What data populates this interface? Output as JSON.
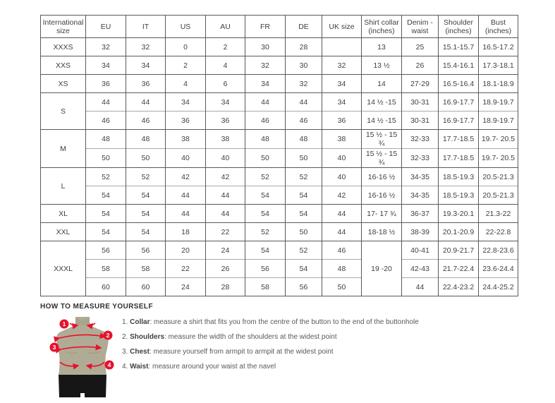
{
  "table": {
    "headers": [
      "International size",
      "EU",
      "IT",
      "US",
      "AU",
      "FR",
      "DE",
      "UK size",
      "Shirt collar (inches)",
      "Denim - waist",
      "Shoulder (inches)",
      "Bust (inches)"
    ],
    "rows": [
      {
        "group": true,
        "cells": [
          [
            "XXXS",
            1
          ],
          [
            "32",
            1
          ],
          [
            "32",
            1
          ],
          [
            "0",
            1
          ],
          [
            "2",
            1
          ],
          [
            "30",
            1
          ],
          [
            "28",
            1
          ],
          [
            "",
            1
          ],
          [
            "13",
            1
          ],
          [
            "25",
            1
          ],
          [
            "15.1-15.7",
            1
          ],
          [
            "16.5-17.2",
            1
          ]
        ]
      },
      {
        "group": true,
        "cells": [
          [
            "XXS",
            1
          ],
          [
            "34",
            1
          ],
          [
            "34",
            1
          ],
          [
            "2",
            1
          ],
          [
            "4",
            1
          ],
          [
            "32",
            1
          ],
          [
            "30",
            1
          ],
          [
            "32",
            1
          ],
          [
            "13 ½",
            1
          ],
          [
            "26",
            1
          ],
          [
            "15.4-16.1",
            1
          ],
          [
            "17.3-18.1",
            1
          ]
        ]
      },
      {
        "group": true,
        "cells": [
          [
            "XS",
            1
          ],
          [
            "36",
            1
          ],
          [
            "36",
            1
          ],
          [
            "4",
            1
          ],
          [
            "6",
            1
          ],
          [
            "34",
            1
          ],
          [
            "32",
            1
          ],
          [
            "34",
            1
          ],
          [
            "14",
            1
          ],
          [
            "27-29",
            1
          ],
          [
            "16.5-16.4",
            1
          ],
          [
            "18.1-18.9",
            1
          ]
        ]
      },
      {
        "group": true,
        "cells": [
          [
            "S",
            2
          ],
          [
            "44",
            1
          ],
          [
            "44",
            1
          ],
          [
            "34",
            1
          ],
          [
            "34",
            1
          ],
          [
            "44",
            1
          ],
          [
            "44",
            1
          ],
          [
            "34",
            1
          ],
          [
            "14 ½ -15",
            1
          ],
          [
            "30-31",
            1
          ],
          [
            "16.9-17.7",
            1
          ],
          [
            "18.9-19.7",
            1
          ]
        ]
      },
      {
        "group": false,
        "cells": [
          null,
          [
            "46",
            1
          ],
          [
            "46",
            1
          ],
          [
            "36",
            1
          ],
          [
            "36",
            1
          ],
          [
            "46",
            1
          ],
          [
            "46",
            1
          ],
          [
            "36",
            1
          ],
          [
            "14 ½ -15",
            1
          ],
          [
            "30-31",
            1
          ],
          [
            "16.9-17.7",
            1
          ],
          [
            "18.9-19.7",
            1
          ]
        ]
      },
      {
        "group": true,
        "cells": [
          [
            "M",
            2
          ],
          [
            "48",
            1
          ],
          [
            "48",
            1
          ],
          [
            "38",
            1
          ],
          [
            "38",
            1
          ],
          [
            "48",
            1
          ],
          [
            "48",
            1
          ],
          [
            "38",
            1
          ],
          [
            "15 ½ - 15 ¾",
            1
          ],
          [
            "32-33",
            1
          ],
          [
            "17.7-18.5",
            1
          ],
          [
            "19.7- 20.5",
            1
          ]
        ]
      },
      {
        "group": false,
        "cells": [
          null,
          [
            "50",
            1
          ],
          [
            "50",
            1
          ],
          [
            "40",
            1
          ],
          [
            "40",
            1
          ],
          [
            "50",
            1
          ],
          [
            "50",
            1
          ],
          [
            "40",
            1
          ],
          [
            "15 ½ - 15 ¾",
            1
          ],
          [
            "32-33",
            1
          ],
          [
            "17.7-18.5",
            1
          ],
          [
            "19.7- 20.5",
            1
          ]
        ]
      },
      {
        "group": true,
        "cells": [
          [
            "L",
            2
          ],
          [
            "52",
            1
          ],
          [
            "52",
            1
          ],
          [
            "42",
            1
          ],
          [
            "42",
            1
          ],
          [
            "52",
            1
          ],
          [
            "52",
            1
          ],
          [
            "40",
            1
          ],
          [
            "16-16 ½",
            1
          ],
          [
            "34-35",
            1
          ],
          [
            "18.5-19.3",
            1
          ],
          [
            "20.5-21.3",
            1
          ]
        ]
      },
      {
        "group": false,
        "cells": [
          null,
          [
            "54",
            1
          ],
          [
            "54",
            1
          ],
          [
            "44",
            1
          ],
          [
            "44",
            1
          ],
          [
            "54",
            1
          ],
          [
            "54",
            1
          ],
          [
            "42",
            1
          ],
          [
            "16-16 ½",
            1
          ],
          [
            "34-35",
            1
          ],
          [
            "18.5-19.3",
            1
          ],
          [
            "20.5-21.3",
            1
          ]
        ]
      },
      {
        "group": true,
        "cells": [
          [
            "XL",
            1
          ],
          [
            "54",
            1
          ],
          [
            "54",
            1
          ],
          [
            "44",
            1
          ],
          [
            "44",
            1
          ],
          [
            "54",
            1
          ],
          [
            "54",
            1
          ],
          [
            "44",
            1
          ],
          [
            "17- 17 ¾",
            1
          ],
          [
            "36-37",
            1
          ],
          [
            "19.3-20.1",
            1
          ],
          [
            "21.3-22",
            1
          ]
        ]
      },
      {
        "group": true,
        "cells": [
          [
            "XXL",
            1
          ],
          [
            "54",
            1
          ],
          [
            "54",
            1
          ],
          [
            "18",
            1
          ],
          [
            "22",
            1
          ],
          [
            "52",
            1
          ],
          [
            "50",
            1
          ],
          [
            "44",
            1
          ],
          [
            "18-18 ½",
            1
          ],
          [
            "38-39",
            1
          ],
          [
            "20.1-20.9",
            1
          ],
          [
            "22-22.8",
            1
          ]
        ]
      },
      {
        "group": true,
        "cells": [
          [
            "XXXL",
            3
          ],
          [
            "56",
            1
          ],
          [
            "56",
            1
          ],
          [
            "20",
            1
          ],
          [
            "24",
            1
          ],
          [
            "54",
            1
          ],
          [
            "52",
            1
          ],
          [
            "46",
            1
          ],
          [
            "19 -20",
            3
          ],
          [
            "40-41",
            1
          ],
          [
            "20.9-21.7",
            1
          ],
          [
            "22.8-23.6",
            1
          ]
        ]
      },
      {
        "group": false,
        "cells": [
          null,
          [
            "58",
            1
          ],
          [
            "58",
            1
          ],
          [
            "22",
            1
          ],
          [
            "26",
            1
          ],
          [
            "56",
            1
          ],
          [
            "54",
            1
          ],
          [
            "48",
            1
          ],
          null,
          [
            "42-43",
            1
          ],
          [
            "21.7-22.4",
            1
          ],
          [
            "23.6-24.4",
            1
          ]
        ]
      },
      {
        "group": false,
        "cells": [
          null,
          [
            "60",
            1
          ],
          [
            "60",
            1
          ],
          [
            "24",
            1
          ],
          [
            "28",
            1
          ],
          [
            "58",
            1
          ],
          [
            "56",
            1
          ],
          [
            "50",
            1
          ],
          null,
          [
            "44",
            1
          ],
          [
            "22.4-23.2",
            1
          ],
          [
            "24.4-25.2",
            1
          ]
        ]
      }
    ]
  },
  "measure": {
    "title": "HOW TO MEASURE YOURSELF",
    "steps": [
      {
        "num": "1.",
        "label": "Collar",
        "text": ": measure a shirt that fits you from the centre of the button to the end of the buttonhole"
      },
      {
        "num": "2.",
        "label": "Shoulders",
        "text": ": measure the width of the shoulders at the widest point"
      },
      {
        "num": "3.",
        "label": "Chest",
        "text": ": measure yourself from armpit to armpit at the widest point"
      },
      {
        "num": "4.",
        "label": "Waist",
        "text": ": measure around your waist at the navel"
      }
    ],
    "markers": [
      "1",
      "2",
      "3",
      "4"
    ]
  },
  "colors": {
    "accent_red": "#e8112d",
    "torso": "#b0ab95",
    "torso_shade": "#9d987f",
    "pants": "#161616",
    "border_dark": "#58595b",
    "border_light": "#a7a9ac",
    "text": "#414042"
  }
}
